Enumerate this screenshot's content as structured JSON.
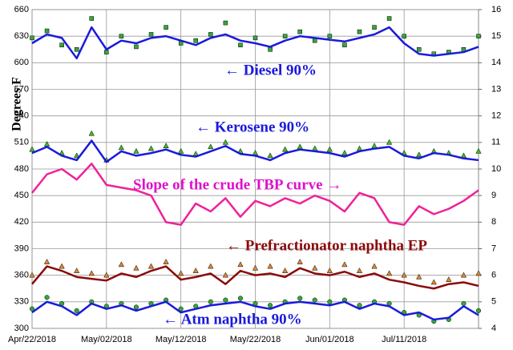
{
  "chart_data": {
    "type": "line",
    "y_label": "Degrees F",
    "x": [
      0,
      2,
      4,
      6,
      8,
      10,
      12,
      14,
      16,
      18,
      20,
      22,
      24,
      26,
      28,
      30,
      32,
      34,
      36,
      38,
      40,
      42,
      44,
      46,
      48,
      50,
      52,
      54,
      56,
      58,
      60
    ],
    "xlim": [
      0,
      60
    ],
    "xticks": [
      {
        "value": 0,
        "label": "Apr/22/2018"
      },
      {
        "value": 10,
        "label": "May/02/2018"
      },
      {
        "value": 20,
        "label": "May/12/2018"
      },
      {
        "value": 30,
        "label": "May/22/2018"
      },
      {
        "value": 40,
        "label": "Jun/01/2018"
      },
      {
        "value": 50,
        "label": "Jul/11/2018"
      }
    ],
    "ylim": [
      300,
      660
    ],
    "yticks": [
      300,
      330,
      360,
      390,
      420,
      450,
      480,
      510,
      540,
      570,
      600,
      630,
      660
    ],
    "y2lim": [
      4,
      16
    ],
    "y2ticks": [
      4,
      5,
      6,
      7,
      8,
      9,
      10,
      11,
      12,
      13,
      14,
      15,
      16
    ],
    "grid": true,
    "series": [
      {
        "style": "marker",
        "marker": "square",
        "color": "#33aa33",
        "values": [
          628,
          636,
          620,
          615,
          650,
          612,
          630,
          618,
          632,
          640,
          622,
          625,
          632,
          645,
          620,
          628,
          615,
          630,
          635,
          625,
          630,
          620,
          635,
          640,
          650,
          630,
          615,
          610,
          612,
          615,
          630
        ]
      },
      {
        "style": "line",
        "color": "#1a1adc",
        "values": [
          622,
          632,
          628,
          605,
          640,
          615,
          625,
          622,
          628,
          630,
          625,
          620,
          628,
          632,
          625,
          622,
          618,
          625,
          630,
          628,
          626,
          624,
          628,
          632,
          640,
          622,
          610,
          608,
          610,
          612,
          618
        ]
      },
      {
        "style": "marker",
        "marker": "triangle",
        "color": "#44bb22",
        "values": [
          502,
          508,
          498,
          495,
          520,
          490,
          504,
          500,
          503,
          506,
          500,
          497,
          505,
          510,
          500,
          498,
          495,
          502,
          505,
          503,
          502,
          498,
          503,
          506,
          510,
          498,
          496,
          500,
          498,
          495,
          500
        ]
      },
      {
        "style": "line",
        "color": "#1a1adc",
        "values": [
          498,
          505,
          495,
          490,
          512,
          488,
          500,
          495,
          498,
          502,
          496,
          494,
          500,
          506,
          497,
          495,
          490,
          498,
          502,
          500,
          498,
          494,
          500,
          503,
          505,
          495,
          492,
          498,
          496,
          492,
          490
        ]
      },
      {
        "style": "line",
        "axis": "y2",
        "color": "#ee2299",
        "values": [
          9.1,
          9.8,
          10.0,
          9.6,
          10.2,
          9.4,
          9.3,
          9.2,
          9.0,
          8.0,
          7.9,
          8.7,
          8.4,
          8.9,
          8.2,
          8.8,
          8.6,
          8.9,
          8.7,
          9.0,
          8.8,
          8.4,
          9.1,
          8.9,
          8.0,
          7.9,
          8.6,
          8.3,
          8.5,
          8.8,
          9.2
        ]
      },
      {
        "style": "marker",
        "marker": "triangle",
        "color": "#dd8833",
        "values": [
          360,
          375,
          370,
          365,
          362,
          360,
          372,
          368,
          370,
          375,
          362,
          365,
          370,
          360,
          372,
          368,
          370,
          365,
          375,
          368,
          365,
          372,
          365,
          370,
          362,
          360,
          358,
          352,
          355,
          360,
          362
        ]
      },
      {
        "style": "line",
        "color": "#8b0a0a",
        "values": [
          350,
          370,
          365,
          358,
          356,
          354,
          362,
          358,
          365,
          370,
          355,
          358,
          362,
          350,
          365,
          360,
          362,
          358,
          368,
          362,
          360,
          364,
          358,
          362,
          355,
          352,
          348,
          345,
          350,
          352,
          348
        ]
      },
      {
        "style": "marker",
        "marker": "circle",
        "color": "#33aa33",
        "values": [
          322,
          335,
          328,
          320,
          330,
          325,
          328,
          324,
          328,
          332,
          322,
          325,
          330,
          332,
          334,
          328,
          326,
          330,
          334,
          332,
          330,
          332,
          326,
          330,
          328,
          318,
          315,
          308,
          310,
          328,
          320
        ]
      },
      {
        "style": "line",
        "color": "#1a1adc",
        "values": [
          318,
          330,
          325,
          315,
          328,
          322,
          326,
          320,
          325,
          330,
          318,
          322,
          326,
          328,
          330,
          325,
          322,
          328,
          330,
          328,
          326,
          330,
          322,
          328,
          325,
          315,
          318,
          310,
          312,
          325,
          315
        ]
      }
    ],
    "annotations": [
      {
        "text": "← Diesel 90%",
        "color": "#1a1adc"
      },
      {
        "text": "← Kerosene 90%",
        "color": "#1a1adc"
      },
      {
        "text": "Slope of the crude TBP curve →",
        "color": "#dd11cc"
      },
      {
        "text": "← Prefractionator naphtha EP",
        "color": "#8b0a0a"
      },
      {
        "text": "← Atm naphtha 90%",
        "color": "#1a1adc"
      }
    ]
  }
}
